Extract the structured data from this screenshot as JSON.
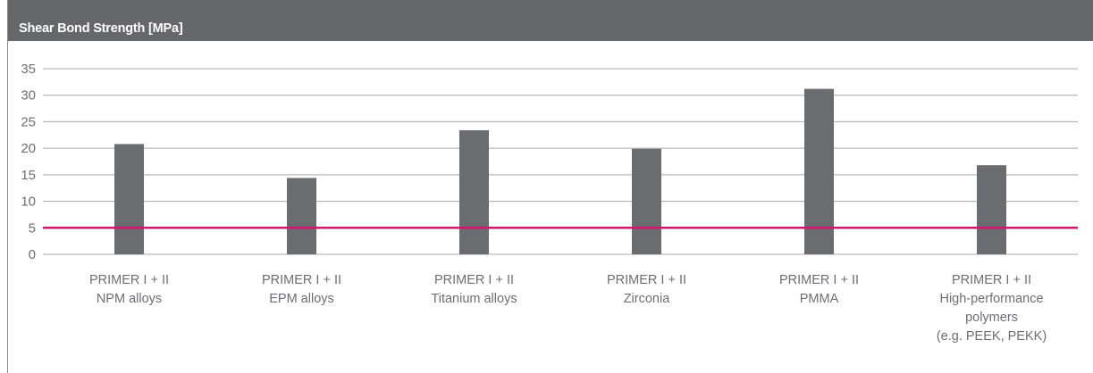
{
  "chart_data": {
    "type": "bar",
    "title": "Shear Bond Strength [MPa]",
    "categories": [
      [
        "PRIMER I + II",
        "NPM alloys"
      ],
      [
        "PRIMER I + II",
        "EPM alloys"
      ],
      [
        "PRIMER I + II",
        "Titanium alloys"
      ],
      [
        "PRIMER I + II",
        "Zirconia"
      ],
      [
        "PRIMER I + II",
        "PMMA"
      ],
      [
        "PRIMER I + II",
        "High-performance",
        "polymers",
        "(e.g. PEEK, PEKK)"
      ]
    ],
    "values": [
      20.8,
      14.4,
      23.4,
      19.9,
      31.2,
      16.8
    ],
    "ylim": [
      0,
      35
    ],
    "yticks": [
      0,
      5,
      10,
      15,
      20,
      25,
      30,
      35
    ],
    "reference_line": 5,
    "grid": true,
    "colors": {
      "bar": "#6b6c6f",
      "reference_line": "#d4146f",
      "header": "#66676a",
      "grid": "#a7a8aa"
    }
  }
}
